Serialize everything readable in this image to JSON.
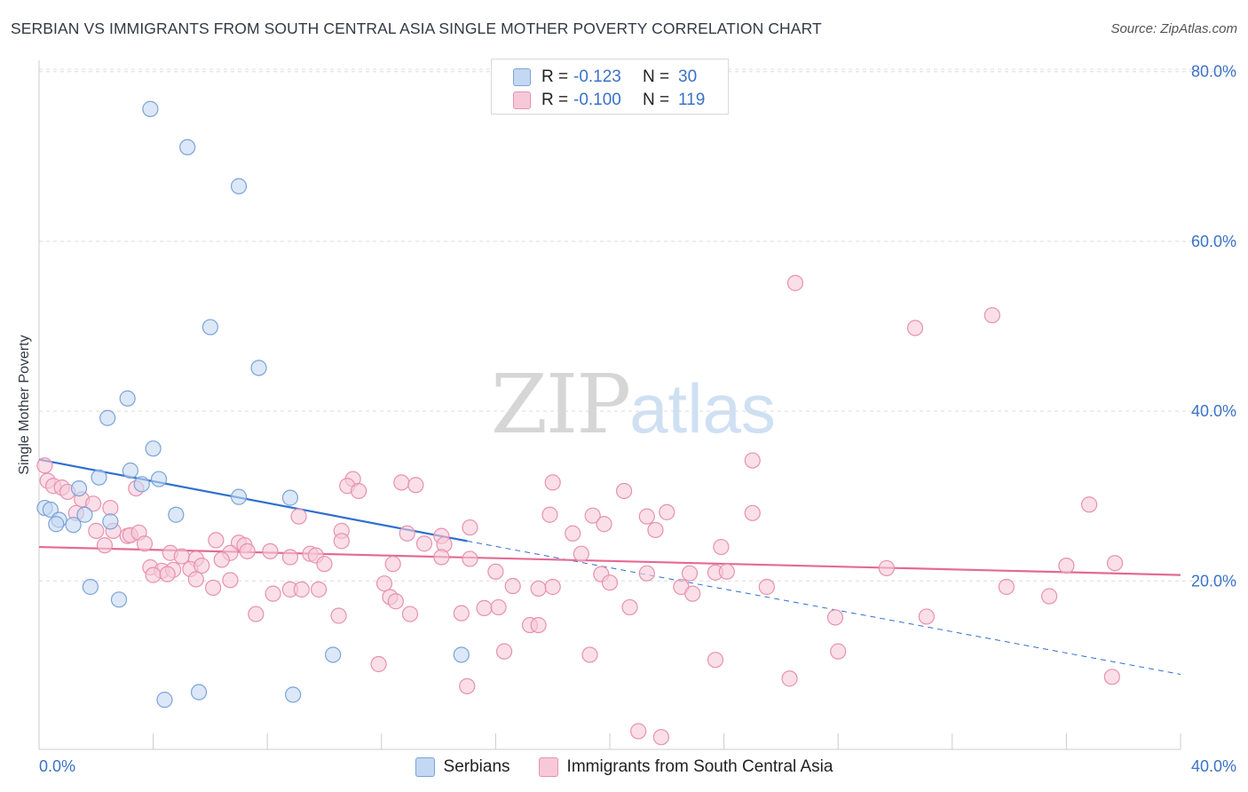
{
  "title": "SERBIAN VS IMMIGRANTS FROM SOUTH CENTRAL ASIA SINGLE MOTHER POVERTY CORRELATION CHART",
  "source": "Source: ZipAtlas.com",
  "watermark": {
    "zip": "ZIP",
    "atlas": "atlas"
  },
  "colors": {
    "serbian_fill": "#c4d8f2",
    "serbian_stroke": "#7ba3d9",
    "serbian_line": "#2f6fd0",
    "immigrant_fill": "#f7c9d8",
    "immigrant_stroke": "#e891af",
    "immigrant_line": "#e46a95",
    "grid": "#dcdcdc",
    "tick_label": "#3a72c8"
  },
  "legend_top": {
    "rows": [
      {
        "r_label": "R =",
        "r_value": "-0.123",
        "n_label": "N =",
        "n_value": "30"
      },
      {
        "r_label": "R =",
        "r_value": "-0.100",
        "n_label": "N =",
        "n_value": "119"
      }
    ]
  },
  "legend_bottom": {
    "items": [
      "Serbians",
      "Immigrants from South Central Asia"
    ]
  },
  "chart_data": {
    "type": "scatter",
    "title": "SERBIAN VS IMMIGRANTS FROM SOUTH CENTRAL ASIA SINGLE MOTHER POVERTY CORRELATION CHART",
    "xlabel": "",
    "ylabel": "Single Mother Poverty",
    "xlim": [
      0,
      40
    ],
    "ylim": [
      0,
      82
    ],
    "x_tick_labels": [
      "0.0%",
      "40.0%"
    ],
    "y_ticks": [
      20,
      40,
      60,
      80
    ],
    "y_tick_labels": [
      "20.0%",
      "40.0%",
      "60.0%",
      "80.0%"
    ],
    "grid": "horizontal dashed",
    "legend": "top-center",
    "series": [
      {
        "name": "Serbians",
        "r": -0.123,
        "n": 30,
        "trend": {
          "x0": 0,
          "y0": 34.3,
          "x1": 15,
          "y1": 24.7,
          "dashed_to_x": 40,
          "dashed_to_y": 9.0
        },
        "points": [
          [
            3.9,
            75.6
          ],
          [
            5.2,
            71.1
          ],
          [
            7.0,
            66.5
          ],
          [
            6.0,
            49.9
          ],
          [
            7.7,
            45.1
          ],
          [
            3.1,
            41.5
          ],
          [
            2.4,
            39.2
          ],
          [
            4.0,
            35.6
          ],
          [
            3.2,
            33.0
          ],
          [
            2.1,
            32.2
          ],
          [
            4.2,
            32.0
          ],
          [
            3.6,
            31.4
          ],
          [
            1.4,
            30.9
          ],
          [
            7.0,
            29.9
          ],
          [
            8.8,
            29.8
          ],
          [
            0.2,
            28.6
          ],
          [
            0.4,
            28.4
          ],
          [
            1.6,
            27.8
          ],
          [
            0.7,
            27.2
          ],
          [
            4.8,
            27.8
          ],
          [
            2.5,
            27.0
          ],
          [
            0.6,
            26.7
          ],
          [
            1.2,
            26.6
          ],
          [
            1.8,
            19.3
          ],
          [
            2.8,
            17.8
          ],
          [
            10.3,
            11.3
          ],
          [
            14.8,
            11.3
          ],
          [
            5.6,
            6.9
          ],
          [
            4.4,
            6.0
          ],
          [
            8.9,
            6.6
          ]
        ]
      },
      {
        "name": "Immigrants from South Central Asia",
        "r": -0.1,
        "n": 119,
        "trend": {
          "x0": 0,
          "y0": 24.0,
          "x1": 40,
          "y1": 20.7
        },
        "points": [
          [
            26.5,
            55.1
          ],
          [
            33.4,
            51.3
          ],
          [
            30.7,
            49.8
          ],
          [
            25.0,
            34.2
          ],
          [
            0.2,
            33.6
          ],
          [
            0.3,
            31.8
          ],
          [
            0.5,
            31.2
          ],
          [
            0.8,
            31.0
          ],
          [
            1.0,
            30.5
          ],
          [
            3.4,
            30.9
          ],
          [
            11.0,
            32.0
          ],
          [
            10.8,
            31.2
          ],
          [
            11.2,
            30.6
          ],
          [
            12.7,
            31.6
          ],
          [
            13.2,
            31.3
          ],
          [
            18.0,
            31.6
          ],
          [
            20.5,
            30.6
          ],
          [
            1.5,
            29.6
          ],
          [
            1.9,
            29.1
          ],
          [
            2.5,
            28.6
          ],
          [
            1.3,
            28.0
          ],
          [
            9.1,
            27.6
          ],
          [
            17.9,
            27.8
          ],
          [
            19.4,
            27.7
          ],
          [
            21.3,
            27.6
          ],
          [
            22.0,
            28.1
          ],
          [
            25.0,
            28.0
          ],
          [
            36.8,
            29.0
          ],
          [
            19.8,
            26.7
          ],
          [
            21.6,
            26.0
          ],
          [
            2.0,
            25.9
          ],
          [
            2.6,
            25.9
          ],
          [
            3.1,
            25.3
          ],
          [
            3.2,
            25.4
          ],
          [
            3.5,
            25.7
          ],
          [
            10.6,
            25.9
          ],
          [
            12.9,
            25.6
          ],
          [
            13.5,
            24.4
          ],
          [
            14.1,
            25.3
          ],
          [
            15.1,
            26.3
          ],
          [
            18.7,
            25.6
          ],
          [
            2.3,
            24.2
          ],
          [
            3.7,
            24.4
          ],
          [
            6.2,
            24.8
          ],
          [
            7.0,
            24.5
          ],
          [
            7.2,
            24.2
          ],
          [
            10.6,
            24.7
          ],
          [
            14.2,
            24.3
          ],
          [
            23.9,
            24.0
          ],
          [
            4.6,
            23.3
          ],
          [
            6.7,
            23.3
          ],
          [
            7.3,
            23.5
          ],
          [
            8.1,
            23.5
          ],
          [
            9.5,
            23.2
          ],
          [
            9.7,
            23.0
          ],
          [
            19.0,
            23.2
          ],
          [
            5.0,
            22.9
          ],
          [
            5.5,
            22.6
          ],
          [
            6.4,
            22.5
          ],
          [
            8.8,
            22.8
          ],
          [
            14.1,
            22.8
          ],
          [
            15.1,
            22.6
          ],
          [
            3.9,
            21.6
          ],
          [
            4.3,
            21.2
          ],
          [
            4.7,
            21.3
          ],
          [
            5.3,
            21.4
          ],
          [
            5.7,
            21.8
          ],
          [
            10.0,
            22.0
          ],
          [
            12.4,
            22.0
          ],
          [
            16.0,
            21.1
          ],
          [
            29.7,
            21.5
          ],
          [
            36.0,
            21.8
          ],
          [
            37.7,
            22.1
          ],
          [
            19.7,
            20.8
          ],
          [
            21.3,
            20.9
          ],
          [
            22.8,
            20.9
          ],
          [
            23.7,
            21.0
          ],
          [
            24.1,
            21.1
          ],
          [
            4.0,
            20.7
          ],
          [
            4.5,
            20.8
          ],
          [
            5.5,
            20.2
          ],
          [
            6.7,
            20.1
          ],
          [
            12.1,
            19.7
          ],
          [
            16.6,
            19.4
          ],
          [
            17.5,
            19.1
          ],
          [
            18.0,
            19.3
          ],
          [
            20.0,
            19.8
          ],
          [
            22.5,
            19.3
          ],
          [
            25.5,
            19.3
          ],
          [
            33.9,
            19.3
          ],
          [
            6.1,
            19.2
          ],
          [
            8.2,
            18.5
          ],
          [
            8.8,
            19.0
          ],
          [
            9.2,
            19.0
          ],
          [
            9.8,
            19.0
          ],
          [
            12.3,
            18.1
          ],
          [
            12.5,
            17.6
          ],
          [
            14.8,
            16.2
          ],
          [
            7.6,
            16.1
          ],
          [
            10.5,
            15.9
          ],
          [
            13.0,
            16.1
          ],
          [
            15.6,
            16.8
          ],
          [
            16.1,
            16.9
          ],
          [
            22.9,
            18.5
          ],
          [
            20.7,
            16.9
          ],
          [
            27.9,
            15.7
          ],
          [
            31.1,
            15.8
          ],
          [
            35.4,
            18.2
          ],
          [
            17.2,
            14.8
          ],
          [
            17.5,
            14.8
          ],
          [
            11.9,
            10.2
          ],
          [
            16.3,
            11.7
          ],
          [
            19.3,
            11.3
          ],
          [
            23.7,
            10.7
          ],
          [
            28.0,
            11.7
          ],
          [
            15.0,
            7.6
          ],
          [
            26.3,
            8.5
          ],
          [
            37.6,
            8.7
          ],
          [
            21.0,
            2.3
          ],
          [
            21.8,
            1.6
          ]
        ]
      }
    ]
  }
}
